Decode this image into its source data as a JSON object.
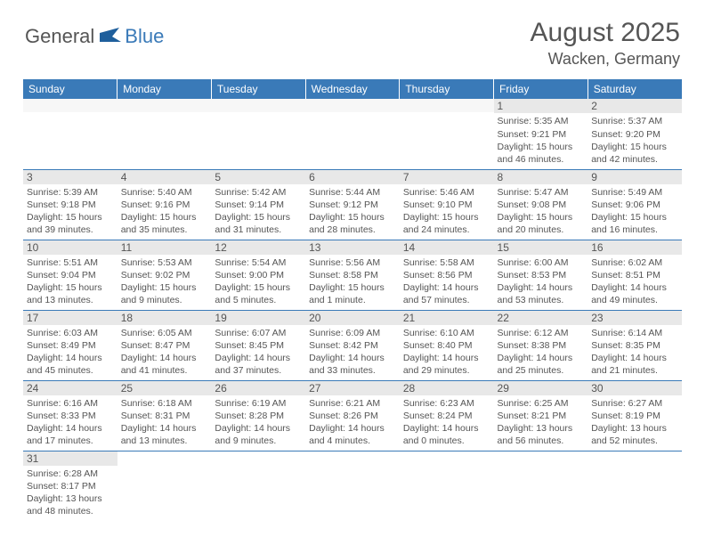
{
  "logo": {
    "text_general": "General",
    "text_blue": "Blue"
  },
  "title": {
    "month": "August 2025",
    "location": "Wacken, Germany"
  },
  "colors": {
    "header_bg": "#3a7ab8",
    "header_text": "#ffffff",
    "daynum_bg": "#e8e8e8",
    "text": "#555555",
    "rule": "#3a7ab8"
  },
  "weekdays": [
    "Sunday",
    "Monday",
    "Tuesday",
    "Wednesday",
    "Thursday",
    "Friday",
    "Saturday"
  ],
  "weeks": [
    [
      null,
      null,
      null,
      null,
      null,
      {
        "n": "1",
        "sunrise": "5:35 AM",
        "sunset": "9:21 PM",
        "dl_h": 15,
        "dl_m": 46
      },
      {
        "n": "2",
        "sunrise": "5:37 AM",
        "sunset": "9:20 PM",
        "dl_h": 15,
        "dl_m": 42
      }
    ],
    [
      {
        "n": "3",
        "sunrise": "5:39 AM",
        "sunset": "9:18 PM",
        "dl_h": 15,
        "dl_m": 39
      },
      {
        "n": "4",
        "sunrise": "5:40 AM",
        "sunset": "9:16 PM",
        "dl_h": 15,
        "dl_m": 35
      },
      {
        "n": "5",
        "sunrise": "5:42 AM",
        "sunset": "9:14 PM",
        "dl_h": 15,
        "dl_m": 31
      },
      {
        "n": "6",
        "sunrise": "5:44 AM",
        "sunset": "9:12 PM",
        "dl_h": 15,
        "dl_m": 28
      },
      {
        "n": "7",
        "sunrise": "5:46 AM",
        "sunset": "9:10 PM",
        "dl_h": 15,
        "dl_m": 24
      },
      {
        "n": "8",
        "sunrise": "5:47 AM",
        "sunset": "9:08 PM",
        "dl_h": 15,
        "dl_m": 20
      },
      {
        "n": "9",
        "sunrise": "5:49 AM",
        "sunset": "9:06 PM",
        "dl_h": 15,
        "dl_m": 16
      }
    ],
    [
      {
        "n": "10",
        "sunrise": "5:51 AM",
        "sunset": "9:04 PM",
        "dl_h": 15,
        "dl_m": 13
      },
      {
        "n": "11",
        "sunrise": "5:53 AM",
        "sunset": "9:02 PM",
        "dl_h": 15,
        "dl_m": 9
      },
      {
        "n": "12",
        "sunrise": "5:54 AM",
        "sunset": "9:00 PM",
        "dl_h": 15,
        "dl_m": 5
      },
      {
        "n": "13",
        "sunrise": "5:56 AM",
        "sunset": "8:58 PM",
        "dl_h": 15,
        "dl_m": 1
      },
      {
        "n": "14",
        "sunrise": "5:58 AM",
        "sunset": "8:56 PM",
        "dl_h": 14,
        "dl_m": 57
      },
      {
        "n": "15",
        "sunrise": "6:00 AM",
        "sunset": "8:53 PM",
        "dl_h": 14,
        "dl_m": 53
      },
      {
        "n": "16",
        "sunrise": "6:02 AM",
        "sunset": "8:51 PM",
        "dl_h": 14,
        "dl_m": 49
      }
    ],
    [
      {
        "n": "17",
        "sunrise": "6:03 AM",
        "sunset": "8:49 PM",
        "dl_h": 14,
        "dl_m": 45
      },
      {
        "n": "18",
        "sunrise": "6:05 AM",
        "sunset": "8:47 PM",
        "dl_h": 14,
        "dl_m": 41
      },
      {
        "n": "19",
        "sunrise": "6:07 AM",
        "sunset": "8:45 PM",
        "dl_h": 14,
        "dl_m": 37
      },
      {
        "n": "20",
        "sunrise": "6:09 AM",
        "sunset": "8:42 PM",
        "dl_h": 14,
        "dl_m": 33
      },
      {
        "n": "21",
        "sunrise": "6:10 AM",
        "sunset": "8:40 PM",
        "dl_h": 14,
        "dl_m": 29
      },
      {
        "n": "22",
        "sunrise": "6:12 AM",
        "sunset": "8:38 PM",
        "dl_h": 14,
        "dl_m": 25
      },
      {
        "n": "23",
        "sunrise": "6:14 AM",
        "sunset": "8:35 PM",
        "dl_h": 14,
        "dl_m": 21
      }
    ],
    [
      {
        "n": "24",
        "sunrise": "6:16 AM",
        "sunset": "8:33 PM",
        "dl_h": 14,
        "dl_m": 17
      },
      {
        "n": "25",
        "sunrise": "6:18 AM",
        "sunset": "8:31 PM",
        "dl_h": 14,
        "dl_m": 13
      },
      {
        "n": "26",
        "sunrise": "6:19 AM",
        "sunset": "8:28 PM",
        "dl_h": 14,
        "dl_m": 9
      },
      {
        "n": "27",
        "sunrise": "6:21 AM",
        "sunset": "8:26 PM",
        "dl_h": 14,
        "dl_m": 4
      },
      {
        "n": "28",
        "sunrise": "6:23 AM",
        "sunset": "8:24 PM",
        "dl_h": 14,
        "dl_m": 0
      },
      {
        "n": "29",
        "sunrise": "6:25 AM",
        "sunset": "8:21 PM",
        "dl_h": 13,
        "dl_m": 56
      },
      {
        "n": "30",
        "sunrise": "6:27 AM",
        "sunset": "8:19 PM",
        "dl_h": 13,
        "dl_m": 52
      }
    ],
    [
      {
        "n": "31",
        "sunrise": "6:28 AM",
        "sunset": "8:17 PM",
        "dl_h": 13,
        "dl_m": 48
      },
      null,
      null,
      null,
      null,
      null,
      null
    ]
  ],
  "labels": {
    "sunrise": "Sunrise:",
    "sunset": "Sunset:",
    "daylight": "Daylight:",
    "hours_and": "hours and",
    "minutes": "minutes.",
    "minute": "minute."
  }
}
